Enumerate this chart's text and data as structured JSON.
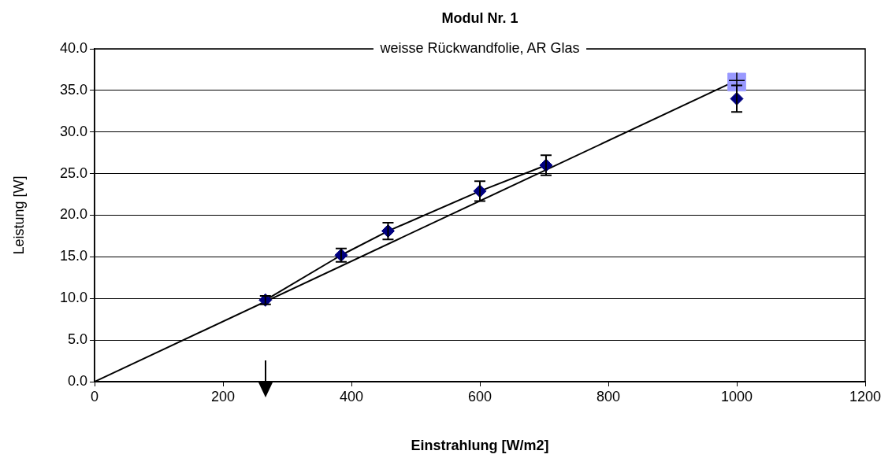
{
  "chart_data": {
    "type": "scatter",
    "title": "Modul Nr. 1",
    "subtitle": "weisse Rückwandfolie, AR Glas",
    "xlabel": "Einstrahlung [W/m2]",
    "ylabel": "Leistung [W]",
    "xlim": [
      0,
      1200
    ],
    "xticks": [
      0,
      200,
      400,
      600,
      800,
      1000,
      1200
    ],
    "ylim": [
      0,
      40
    ],
    "yticks": [
      {
        "value": 0,
        "label": "0.0"
      },
      {
        "value": 5,
        "label": "5.0"
      },
      {
        "value": 10,
        "label": "10.0"
      },
      {
        "value": 15,
        "label": "15.0"
      },
      {
        "value": 20,
        "label": "20.0"
      },
      {
        "value": 25,
        "label": "25.0"
      },
      {
        "value": 30,
        "label": "30.0"
      },
      {
        "value": 35,
        "label": "35.0"
      },
      {
        "value": 40,
        "label": "40.0"
      }
    ],
    "grid": "y",
    "legend": false,
    "series": [
      {
        "type": "line",
        "color": "#000000",
        "marker": "none",
        "x": [
          0,
          1000
        ],
        "values": [
          0,
          36.2
        ]
      },
      {
        "type": "line",
        "color": "#000000",
        "marker": "none",
        "x": [
          266,
          384,
          457,
          600,
          703
        ],
        "values": [
          9.8,
          15.2,
          18.1,
          22.9,
          26.0
        ]
      },
      {
        "color": "#9999ff",
        "marker": "square",
        "x": [
          1000
        ],
        "values": [
          36.0
        ]
      },
      {
        "color": "#000080",
        "marker": "diamond",
        "x": [
          266,
          384,
          457,
          600,
          703,
          1000
        ],
        "values": [
          9.8,
          15.2,
          18.1,
          22.9,
          26.0,
          34.0
        ],
        "errors": [
          0.5,
          0.8,
          1.0,
          1.2,
          1.2,
          1.6
        ]
      },
      {
        "color": "#000000",
        "marker": "cross",
        "x": [
          1000
        ],
        "values": [
          36.2
        ]
      }
    ]
  }
}
